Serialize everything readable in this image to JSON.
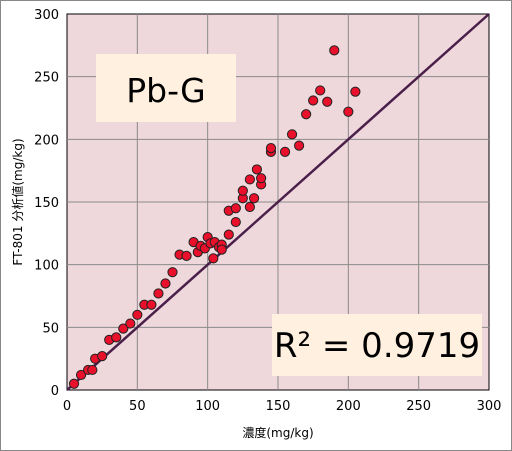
{
  "chart_data": {
    "type": "scatter",
    "title": "",
    "xlabel": "濃度(mg/kg)",
    "ylabel": "FT-801 分析値(mg/kg)",
    "xlim": [
      0,
      300
    ],
    "ylim": [
      0,
      300
    ],
    "x_ticks": [
      "0",
      "50",
      "100",
      "150",
      "200",
      "250",
      "300"
    ],
    "y_ticks": [
      "0",
      "50",
      "100",
      "150",
      "200",
      "250",
      "300"
    ],
    "grid": true,
    "legend": "none",
    "annotations": {
      "element_label": "Pb-G",
      "r_squared": "R² = 0.9719"
    },
    "reference_line": {
      "from": [
        0,
        0
      ],
      "to": [
        300,
        300
      ]
    },
    "series": [
      {
        "marker_color": "#e8102a",
        "points": [
          [
            5,
            5
          ],
          [
            10,
            12
          ],
          [
            15,
            16
          ],
          [
            18,
            16
          ],
          [
            20,
            25
          ],
          [
            25,
            27
          ],
          [
            30,
            40
          ],
          [
            35,
            42
          ],
          [
            40,
            49
          ],
          [
            45,
            53
          ],
          [
            50,
            60
          ],
          [
            55,
            68
          ],
          [
            60,
            68
          ],
          [
            65,
            77
          ],
          [
            70,
            85
          ],
          [
            75,
            94
          ],
          [
            80,
            108
          ],
          [
            85,
            107
          ],
          [
            90,
            118
          ],
          [
            93,
            110
          ],
          [
            95,
            115
          ],
          [
            98,
            113
          ],
          [
            100,
            122
          ],
          [
            102,
            117
          ],
          [
            104,
            105
          ],
          [
            105,
            118
          ],
          [
            108,
            114
          ],
          [
            110,
            116
          ],
          [
            110,
            112
          ],
          [
            115,
            124
          ],
          [
            115,
            143
          ],
          [
            120,
            134
          ],
          [
            120,
            145
          ],
          [
            125,
            153
          ],
          [
            125,
            159
          ],
          [
            130,
            146
          ],
          [
            130,
            168
          ],
          [
            133,
            153
          ],
          [
            135,
            176
          ],
          [
            138,
            164
          ],
          [
            138,
            169
          ],
          [
            145,
            190
          ],
          [
            145,
            193
          ],
          [
            155,
            190
          ],
          [
            160,
            204
          ],
          [
            165,
            195
          ],
          [
            170,
            220
          ],
          [
            175,
            231
          ],
          [
            180,
            239
          ],
          [
            185,
            230
          ],
          [
            190,
            271
          ],
          [
            200,
            222
          ],
          [
            205,
            238
          ]
        ]
      }
    ]
  },
  "colors": {
    "plot_background": "#efd8dc",
    "outer_background": "#ffffff",
    "grid": "#8a8a8a",
    "marker_fill": "#e8102a",
    "marker_edge": "#222222",
    "reference_line": "#4a1f4a",
    "label_box": "#fff0e0"
  }
}
